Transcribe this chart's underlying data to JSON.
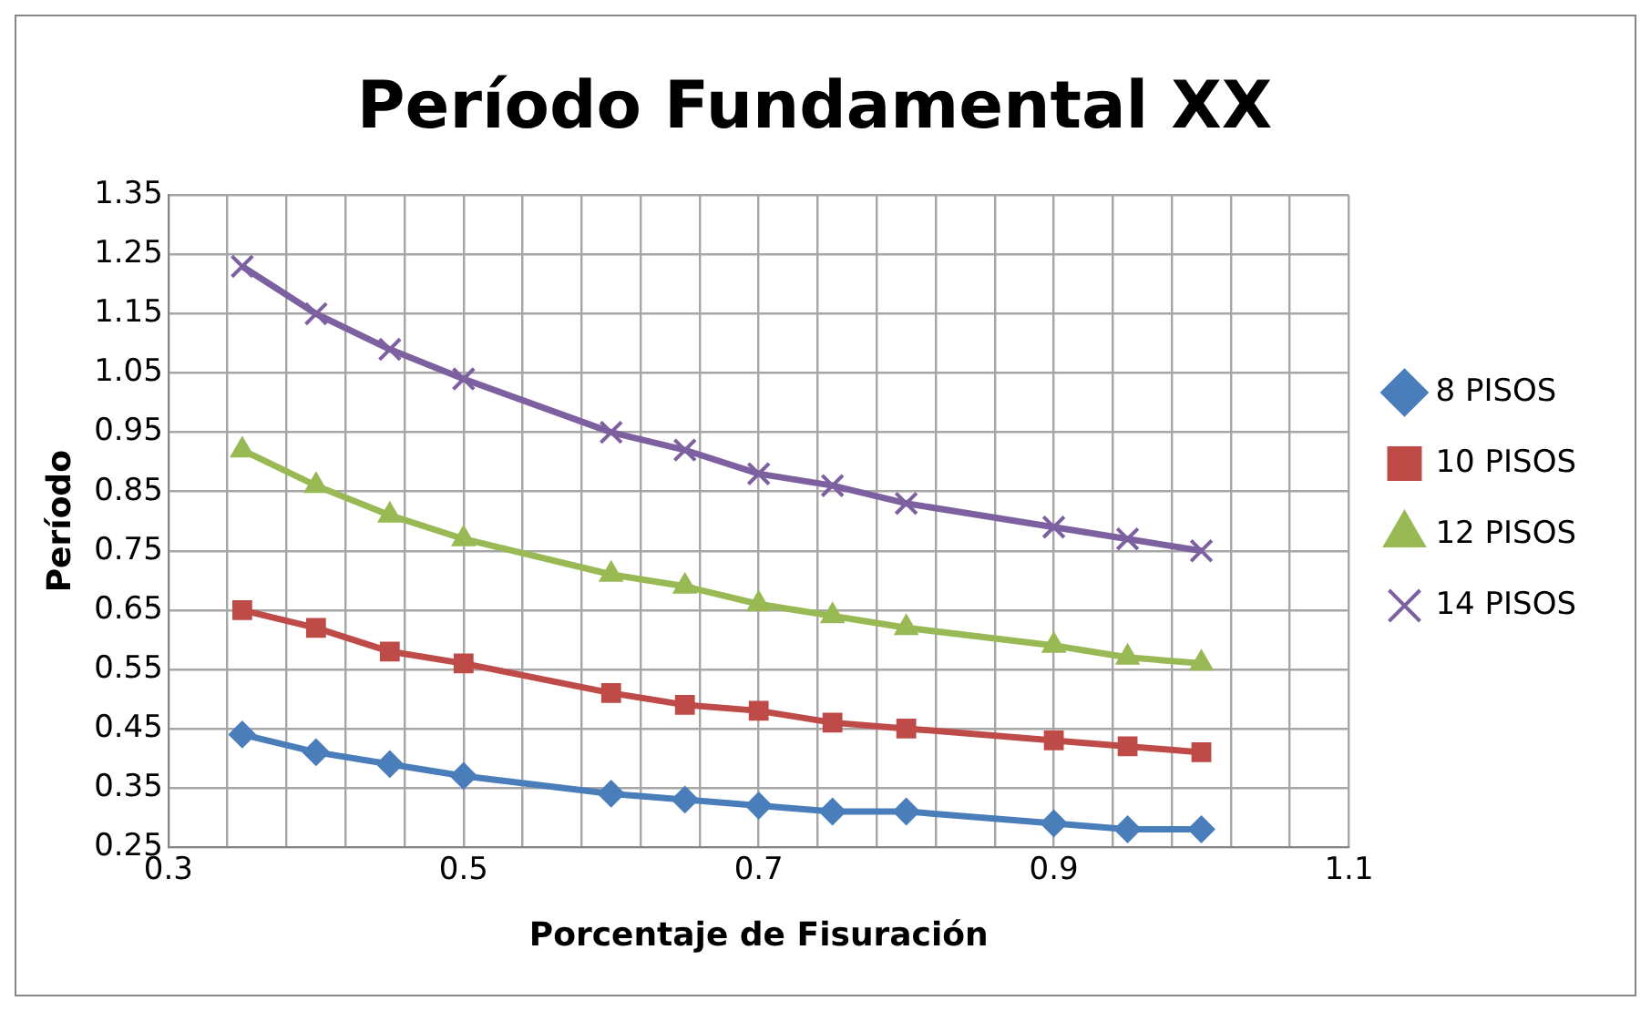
{
  "chart_data": {
    "type": "line",
    "title": "Período Fundamental XX",
    "xlabel": "Porcentaje de Fisuración",
    "ylabel": "Período",
    "x": [
      0.35,
      0.4,
      0.45,
      0.5,
      0.6,
      0.65,
      0.7,
      0.75,
      0.8,
      0.9,
      0.95,
      1.0
    ],
    "series": [
      {
        "name": "8 PISOS",
        "color": "#4a7ebb",
        "marker": "diamond",
        "values": [
          0.44,
          0.41,
          0.39,
          0.37,
          0.34,
          0.33,
          0.32,
          0.31,
          0.31,
          0.29,
          0.28,
          0.28
        ]
      },
      {
        "name": "10 PISOS",
        "color": "#be4b48",
        "marker": "square",
        "values": [
          0.65,
          0.62,
          0.58,
          0.56,
          0.51,
          0.49,
          0.48,
          0.46,
          0.45,
          0.43,
          0.42,
          0.41
        ]
      },
      {
        "name": "12 PISOS",
        "color": "#98b954",
        "marker": "triangle",
        "values": [
          0.92,
          0.86,
          0.81,
          0.77,
          0.71,
          0.69,
          0.66,
          0.64,
          0.62,
          0.59,
          0.57,
          0.56
        ]
      },
      {
        "name": "14 PISOS",
        "color": "#7d60a0",
        "marker": "cross",
        "values": [
          1.23,
          1.15,
          1.09,
          1.04,
          0.95,
          0.92,
          0.88,
          0.86,
          0.83,
          0.79,
          0.77,
          0.75
        ]
      }
    ],
    "xlim": [
      0.3,
      1.1
    ],
    "xticks": [
      0.3,
      {
        "value": 0.34,
        "label": null
      },
      {
        "value": 0.38,
        "label": null
      },
      {
        "value": 0.42,
        "label": null
      },
      {
        "value": 0.46,
        "label": null
      },
      0.5,
      {
        "value": 0.54,
        "label": null
      },
      {
        "value": 0.58,
        "label": null
      },
      {
        "value": 0.62,
        "label": null
      },
      {
        "value": 0.66,
        "label": null
      },
      0.7,
      {
        "value": 0.74,
        "label": null
      },
      {
        "value": 0.78,
        "label": null
      },
      {
        "value": 0.82,
        "label": null
      },
      {
        "value": 0.86,
        "label": null
      },
      0.9,
      {
        "value": 0.94,
        "label": null
      },
      {
        "value": 0.98,
        "label": null
      },
      {
        "value": 1.02,
        "label": null
      },
      {
        "value": 1.06,
        "label": null
      },
      1.1
    ],
    "ylim": [
      0.25,
      1.35
    ],
    "yticks": [
      0.25,
      0.35,
      0.45,
      0.55,
      0.65,
      0.75,
      0.85,
      0.95,
      1.05,
      1.15,
      1.25,
      1.35
    ],
    "grid": true,
    "legend": "right",
    "line_style": "solid"
  }
}
